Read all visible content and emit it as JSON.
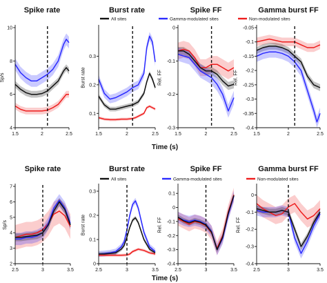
{
  "colors": {
    "all": "#111111",
    "gamma": "#2a2aff",
    "non": "#ee1c1c"
  },
  "legend": {
    "all": {
      "label": "All sites",
      "color": "#111111"
    },
    "gamma": {
      "label": "Gamma-modulated sites",
      "color": "#2a2aff"
    },
    "non": {
      "label": "Non-modulated sites",
      "color": "#ee1c1c"
    }
  },
  "xlabel_top": "Time (s)",
  "xlabel_bottom": "Time (s)",
  "chart_data": [
    {
      "id": "top-spike-rate",
      "type": "line",
      "title": "Spike rate",
      "ylabel": "Sp/s",
      "xlim": [
        1.5,
        2.5
      ],
      "ylim": [
        4,
        10
      ],
      "xticks": [
        1.5,
        2,
        2.5
      ],
      "xtick_labels": [
        "1.5",
        "2",
        "2.5"
      ],
      "yticks": [
        4,
        6,
        8,
        10
      ],
      "ytick_labels": [
        "4",
        "6",
        "8",
        "10"
      ],
      "event_x": 2.1,
      "series": [
        {
          "key": "gamma",
          "x": [
            1.5,
            1.6,
            1.7,
            1.8,
            1.9,
            2.0,
            2.1,
            2.2,
            2.3,
            2.4,
            2.45,
            2.5
          ],
          "y": [
            7.8,
            7.3,
            7.0,
            6.8,
            6.8,
            7.0,
            7.2,
            7.5,
            8.0,
            9.0,
            9.3,
            9.1
          ],
          "err": 0.35
        },
        {
          "key": "all",
          "x": [
            1.5,
            1.6,
            1.7,
            1.8,
            1.9,
            2.0,
            2.1,
            2.2,
            2.3,
            2.4,
            2.45,
            2.5
          ],
          "y": [
            6.6,
            6.3,
            6.1,
            6.0,
            6.0,
            6.05,
            6.2,
            6.5,
            6.8,
            7.4,
            7.6,
            7.4
          ],
          "err": 0.2
        },
        {
          "key": "non",
          "x": [
            1.5,
            1.6,
            1.7,
            1.8,
            1.9,
            2.0,
            2.1,
            2.2,
            2.3,
            2.4,
            2.45,
            2.5
          ],
          "y": [
            5.3,
            5.1,
            5.0,
            5.0,
            5.0,
            5.0,
            5.05,
            5.2,
            5.4,
            5.8,
            6.0,
            6.0
          ],
          "err": 0.2
        }
      ]
    },
    {
      "id": "top-burst-rate",
      "type": "line",
      "title": "Burst rate",
      "ylabel": "Burst rate",
      "xlim": [
        1.5,
        2.5
      ],
      "ylim": [
        0.05,
        0.4
      ],
      "xticks": [
        1.5,
        2,
        2.5
      ],
      "xtick_labels": [
        "1.5",
        "2",
        "2.5"
      ],
      "yticks": [
        0.1,
        0.2,
        0.3
      ],
      "ytick_labels": [
        "0.1",
        "0.2",
        "0.3"
      ],
      "event_x": 2.1,
      "legend": [
        "all"
      ],
      "series": [
        {
          "key": "gamma",
          "x": [
            1.5,
            1.6,
            1.7,
            1.8,
            1.9,
            2.0,
            2.1,
            2.2,
            2.3,
            2.35,
            2.4,
            2.45,
            2.5
          ],
          "y": [
            0.22,
            0.17,
            0.15,
            0.155,
            0.165,
            0.175,
            0.19,
            0.2,
            0.24,
            0.33,
            0.37,
            0.35,
            0.28
          ],
          "err": 0.015
        },
        {
          "key": "all",
          "x": [
            1.5,
            1.6,
            1.7,
            1.8,
            1.9,
            2.0,
            2.1,
            2.2,
            2.3,
            2.35,
            2.4,
            2.45,
            2.5
          ],
          "y": [
            0.16,
            0.13,
            0.115,
            0.115,
            0.12,
            0.125,
            0.13,
            0.14,
            0.17,
            0.21,
            0.24,
            0.22,
            0.19
          ],
          "err": 0.008
        },
        {
          "key": "non",
          "x": [
            1.5,
            1.6,
            1.7,
            1.8,
            1.9,
            2.0,
            2.1,
            2.15,
            2.2,
            2.3,
            2.35,
            2.4,
            2.45,
            2.5
          ],
          "y": [
            0.085,
            0.08,
            0.078,
            0.078,
            0.08,
            0.08,
            0.082,
            0.085,
            0.09,
            0.1,
            0.12,
            0.125,
            0.12,
            0.115
          ],
          "err": 0.005
        }
      ]
    },
    {
      "id": "top-spike-ff",
      "type": "line",
      "title": "Spike FF",
      "ylabel": "Rel. FF",
      "xlim": [
        1.5,
        2.5
      ],
      "ylim": [
        -0.3,
        0.0
      ],
      "xticks": [
        1.5,
        2,
        2.5
      ],
      "xtick_labels": [
        "1.5",
        "2",
        "2.5"
      ],
      "yticks": [
        -0.3,
        -0.2,
        -0.1,
        0
      ],
      "ytick_labels": [
        "-0.3",
        "-0.2",
        "-0.1",
        "0"
      ],
      "event_x": 2.1,
      "legend": [
        "gamma"
      ],
      "series": [
        {
          "key": "non",
          "x": [
            1.5,
            1.6,
            1.7,
            1.8,
            1.9,
            2.0,
            2.1,
            2.2,
            2.3,
            2.4,
            2.5
          ],
          "y": [
            -0.07,
            -0.065,
            -0.07,
            -0.09,
            -0.12,
            -0.12,
            -0.11,
            -0.11,
            -0.12,
            -0.13,
            -0.12
          ],
          "err": 0.025
        },
        {
          "key": "all",
          "x": [
            1.5,
            1.6,
            1.7,
            1.8,
            1.9,
            2.0,
            2.1,
            2.2,
            2.3,
            2.4,
            2.5
          ],
          "y": [
            -0.07,
            -0.07,
            -0.08,
            -0.1,
            -0.12,
            -0.13,
            -0.13,
            -0.14,
            -0.16,
            -0.175,
            -0.17
          ],
          "err": 0.012
        },
        {
          "key": "gamma",
          "x": [
            1.5,
            1.6,
            1.7,
            1.8,
            1.9,
            2.0,
            2.1,
            2.2,
            2.3,
            2.4,
            2.5
          ],
          "y": [
            -0.08,
            -0.085,
            -0.09,
            -0.11,
            -0.13,
            -0.14,
            -0.15,
            -0.17,
            -0.2,
            -0.25,
            -0.21
          ],
          "err": 0.02
        }
      ]
    },
    {
      "id": "top-gamma-burst-ff",
      "type": "line",
      "title": "Gamma burst FF",
      "ylabel": "Rel. FF",
      "xlim": [
        1.5,
        2.5
      ],
      "ylim": [
        -0.4,
        -0.05
      ],
      "xticks": [
        1.5,
        2,
        2.5
      ],
      "xtick_labels": [
        "1.5",
        "2",
        "2.5"
      ],
      "yticks": [
        -0.05,
        -0.1,
        -0.15,
        -0.2,
        -0.25,
        -0.3,
        -0.35,
        -0.4
      ],
      "ytick_labels": [
        "-0.05",
        "-0.1",
        "-0.15",
        "-0.2",
        "-0.25",
        "-0.3",
        "-0.35",
        "-0.4"
      ],
      "event_x": 2.1,
      "legend": [
        "non"
      ],
      "series": [
        {
          "key": "non",
          "x": [
            1.5,
            1.6,
            1.7,
            1.8,
            1.9,
            2.0,
            2.1,
            2.2,
            2.3,
            2.4,
            2.5
          ],
          "y": [
            -0.1,
            -0.095,
            -0.09,
            -0.095,
            -0.1,
            -0.1,
            -0.1,
            -0.11,
            -0.12,
            -0.12,
            -0.11
          ],
          "err": 0.015
        },
        {
          "key": "all",
          "x": [
            1.5,
            1.6,
            1.7,
            1.8,
            1.9,
            2.0,
            2.1,
            2.2,
            2.3,
            2.4,
            2.5
          ],
          "y": [
            -0.13,
            -0.12,
            -0.115,
            -0.115,
            -0.12,
            -0.13,
            -0.15,
            -0.17,
            -0.22,
            -0.25,
            -0.26
          ],
          "err": 0.012
        },
        {
          "key": "gamma",
          "x": [
            1.5,
            1.6,
            1.7,
            1.8,
            1.9,
            2.0,
            2.1,
            2.2,
            2.3,
            2.4,
            2.45,
            2.5
          ],
          "y": [
            -0.15,
            -0.14,
            -0.135,
            -0.135,
            -0.14,
            -0.15,
            -0.17,
            -0.2,
            -0.27,
            -0.34,
            -0.38,
            -0.35
          ],
          "err": 0.02
        }
      ]
    },
    {
      "id": "bottom-spike-rate",
      "type": "line",
      "title": "Spike rate",
      "ylabel": "Sp/s",
      "xlim": [
        2.5,
        3.5
      ],
      "ylim": [
        2,
        7
      ],
      "xticks": [
        2.5,
        3,
        3.5
      ],
      "xtick_labels": [
        "2.5",
        "3",
        "3.5"
      ],
      "yticks": [
        2,
        3,
        4,
        5,
        6,
        7
      ],
      "ytick_labels": [
        "2",
        "3",
        "4",
        "5",
        "6",
        "7"
      ],
      "event_x": 3.0,
      "series": [
        {
          "key": "non",
          "x": [
            2.5,
            2.6,
            2.7,
            2.8,
            2.9,
            3.0,
            3.1,
            3.2,
            3.3,
            3.4,
            3.5
          ],
          "y": [
            3.7,
            3.8,
            3.9,
            3.9,
            4.0,
            4.2,
            4.6,
            5.2,
            5.4,
            5.1,
            4.4
          ],
          "err": 0.8
        },
        {
          "key": "gamma",
          "x": [
            2.5,
            2.6,
            2.7,
            2.8,
            2.9,
            3.0,
            3.1,
            3.2,
            3.3,
            3.4,
            3.5
          ],
          "y": [
            3.6,
            3.6,
            3.7,
            3.7,
            3.8,
            4.0,
            4.6,
            5.6,
            6.1,
            5.6,
            4.6
          ],
          "err": 0.4
        },
        {
          "key": "all",
          "x": [
            2.5,
            2.6,
            2.7,
            2.8,
            2.9,
            3.0,
            3.1,
            3.2,
            3.3,
            3.4,
            3.5
          ],
          "y": [
            3.7,
            3.7,
            3.75,
            3.8,
            3.85,
            4.0,
            4.5,
            5.4,
            6.0,
            5.5,
            4.5
          ],
          "err": 0.25
        }
      ]
    },
    {
      "id": "bottom-burst-rate",
      "type": "line",
      "title": "Burst rate",
      "ylabel": "Burst rate",
      "xlim": [
        2.5,
        3.5
      ],
      "ylim": [
        0,
        0.32
      ],
      "xticks": [
        2.5,
        3,
        3.5
      ],
      "xtick_labels": [
        "2.5",
        "3",
        "3.5"
      ],
      "yticks": [
        0,
        0.1,
        0.2,
        0.3
      ],
      "ytick_labels": [
        "0",
        "0.1",
        "0.2",
        "0.3"
      ],
      "event_x": 3.0,
      "legend": [
        "all"
      ],
      "series": [
        {
          "key": "gamma",
          "x": [
            2.5,
            2.6,
            2.7,
            2.8,
            2.9,
            2.95,
            3.0,
            3.05,
            3.1,
            3.15,
            3.2,
            3.3,
            3.4,
            3.5
          ],
          "y": [
            0.04,
            0.042,
            0.045,
            0.05,
            0.07,
            0.09,
            0.14,
            0.2,
            0.245,
            0.26,
            0.23,
            0.13,
            0.07,
            0.05
          ],
          "err": 0.012
        },
        {
          "key": "all",
          "x": [
            2.5,
            2.6,
            2.7,
            2.8,
            2.9,
            2.95,
            3.0,
            3.05,
            3.1,
            3.15,
            3.2,
            3.3,
            3.4,
            3.5
          ],
          "y": [
            0.04,
            0.04,
            0.042,
            0.045,
            0.06,
            0.075,
            0.11,
            0.15,
            0.18,
            0.19,
            0.17,
            0.1,
            0.06,
            0.045
          ],
          "err": 0.008
        },
        {
          "key": "non",
          "x": [
            2.5,
            2.6,
            2.7,
            2.8,
            2.9,
            3.0,
            3.05,
            3.1,
            3.2,
            3.3,
            3.4,
            3.5
          ],
          "y": [
            0.035,
            0.035,
            0.035,
            0.035,
            0.035,
            0.036,
            0.04,
            0.05,
            0.06,
            0.055,
            0.045,
            0.04
          ],
          "err": 0.006
        }
      ]
    },
    {
      "id": "bottom-spike-ff",
      "type": "line",
      "title": "Spike FF",
      "ylabel": "Rel. FF",
      "xlim": [
        2.5,
        3.5
      ],
      "ylim": [
        -0.4,
        0.15
      ],
      "xticks": [
        2.5,
        3,
        3.5
      ],
      "xtick_labels": [
        "2.5",
        "3",
        "3.5"
      ],
      "yticks": [
        -0.4,
        -0.3,
        -0.2,
        -0.1,
        0,
        0.1
      ],
      "ytick_labels": [
        "-0.4",
        "-0.3",
        "-0.2",
        "-0.1",
        "0",
        "0.1"
      ],
      "event_x": 3.0,
      "legend": [
        "gamma"
      ],
      "series": [
        {
          "key": "non",
          "x": [
            2.5,
            2.6,
            2.7,
            2.8,
            2.9,
            3.0,
            3.1,
            3.2,
            3.3,
            3.4,
            3.5
          ],
          "y": [
            -0.08,
            -0.1,
            -0.12,
            -0.1,
            -0.11,
            -0.13,
            -0.18,
            -0.29,
            -0.2,
            -0.03,
            0.09
          ],
          "err": 0.05
        },
        {
          "key": "gamma",
          "x": [
            2.5,
            2.6,
            2.7,
            2.8,
            2.9,
            3.0,
            3.1,
            3.2,
            3.3,
            3.4,
            3.5
          ],
          "y": [
            -0.07,
            -0.09,
            -0.1,
            -0.09,
            -0.1,
            -0.12,
            -0.17,
            -0.3,
            -0.22,
            -0.05,
            0.08
          ],
          "err": 0.04
        },
        {
          "key": "all",
          "x": [
            2.5,
            2.6,
            2.7,
            2.8,
            2.9,
            3.0,
            3.1,
            3.2,
            3.3,
            3.4,
            3.5
          ],
          "y": [
            -0.07,
            -0.095,
            -0.11,
            -0.095,
            -0.105,
            -0.125,
            -0.175,
            -0.3,
            -0.21,
            -0.04,
            0.085
          ],
          "err": 0.02
        }
      ]
    },
    {
      "id": "bottom-gamma-burst-ff",
      "type": "line",
      "title": "Gamma burst FF",
      "ylabel": "Rel. FF",
      "xlim": [
        2.5,
        3.5
      ],
      "ylim": [
        -0.4,
        0.05
      ],
      "xticks": [
        2.5,
        3,
        3.5
      ],
      "xtick_labels": [
        "2.5",
        "3",
        "3.5"
      ],
      "yticks": [
        -0.4,
        -0.3,
        -0.2,
        -0.1,
        0
      ],
      "ytick_labels": [
        "-0.4",
        "-0.3",
        "-0.2",
        "-0.1",
        "0"
      ],
      "event_x": 3.0,
      "legend": [
        "non"
      ],
      "series": [
        {
          "key": "non",
          "x": [
            2.5,
            2.6,
            2.7,
            2.8,
            2.9,
            3.0,
            3.1,
            3.2,
            3.3,
            3.4,
            3.5
          ],
          "y": [
            -0.05,
            -0.08,
            -0.1,
            -0.12,
            -0.11,
            -0.07,
            -0.05,
            -0.1,
            -0.14,
            -0.12,
            -0.08
          ],
          "err": 0.05
        },
        {
          "key": "gamma",
          "x": [
            2.5,
            2.6,
            2.7,
            2.8,
            2.9,
            3.0,
            3.1,
            3.2,
            3.3,
            3.4,
            3.5
          ],
          "y": [
            -0.09,
            -0.1,
            -0.1,
            -0.1,
            -0.09,
            -0.1,
            -0.25,
            -0.34,
            -0.27,
            -0.18,
            -0.11
          ],
          "err": 0.03
        },
        {
          "key": "all",
          "x": [
            2.5,
            2.6,
            2.7,
            2.8,
            2.9,
            3.0,
            3.1,
            3.2,
            3.3,
            3.4,
            3.5
          ],
          "y": [
            -0.08,
            -0.09,
            -0.1,
            -0.1,
            -0.09,
            -0.1,
            -0.2,
            -0.3,
            -0.24,
            -0.16,
            -0.1
          ],
          "err": 0.02
        }
      ]
    }
  ]
}
